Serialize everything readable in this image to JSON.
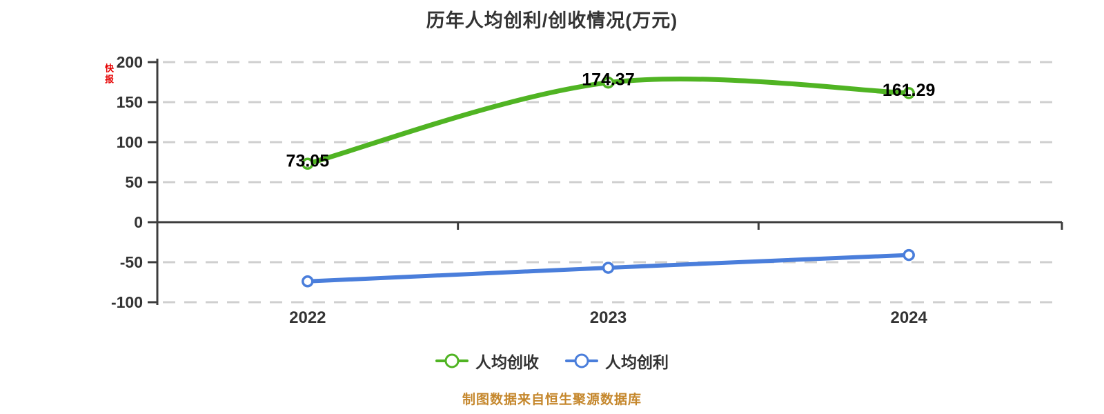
{
  "title": "历年人均创利/创收情况(万元)",
  "flag_label": "快报",
  "footer": "制图数据来自恒生聚源数据库",
  "colors": {
    "revenue_green": "#50b423",
    "profit_blue": "#4a7edb",
    "grid": "#cfcfcf",
    "axis": "#3d3d3d",
    "title_text": "#333333",
    "flag_red": "#e60000",
    "footer_amber": "#c5872c",
    "value_label": "#000000",
    "marker_fill": "#ffffff"
  },
  "chart_data": {
    "type": "line",
    "title": "历年人均创利/创收情况(万元)",
    "categories": [
      "2022",
      "2023",
      "2024"
    ],
    "y_ticks": [
      200,
      150,
      100,
      50,
      0,
      -50,
      -100
    ],
    "ylim": [
      -100,
      200
    ],
    "grid": "horizontal dashed, solid zero axis",
    "legend_position": "bottom-center",
    "smooth": true,
    "series": [
      {
        "name": "人均创收",
        "color_key": "revenue_green",
        "values": [
          73.05,
          174.37,
          161.29
        ],
        "labels": [
          "73.05",
          "174.37",
          "161.29"
        ]
      },
      {
        "name": "人均创利",
        "color_key": "profit_blue",
        "values": [
          -74,
          -57,
          -41
        ],
        "labels": []
      }
    ]
  },
  "legend": {
    "items": [
      {
        "label": "人均创收",
        "color_key": "revenue_green"
      },
      {
        "label": "人均创利",
        "color_key": "profit_blue"
      }
    ]
  }
}
